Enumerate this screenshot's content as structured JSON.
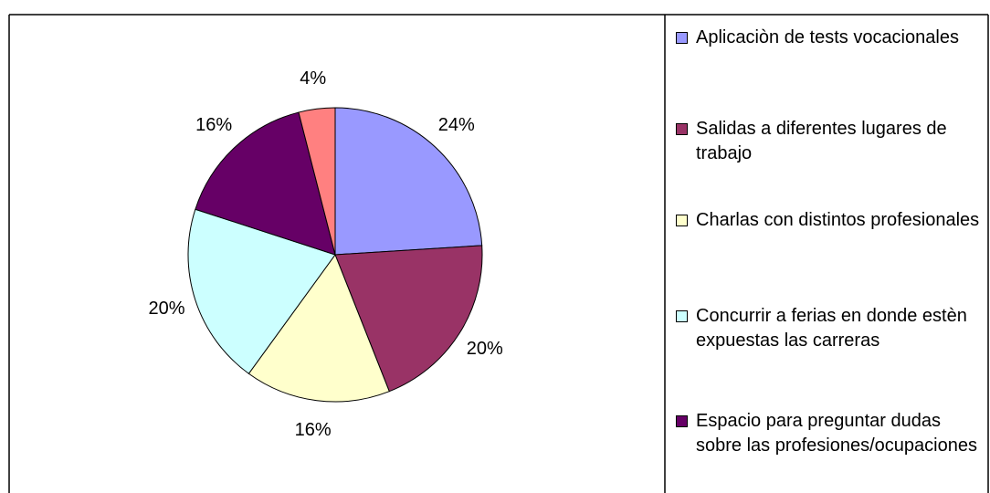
{
  "chart_data": {
    "type": "pie",
    "categories": [
      "Aplicaciòn de tests vocacionales",
      "Salidas a diferentes lugares de trabajo",
      "Charlas con distintos profesionales",
      "Concurrir a ferias en donde estèn expuestas las carreras",
      "Espacio para preguntar dudas sobre las profesiones/ocupaciones",
      null
    ],
    "values": [
      24,
      20,
      16,
      20,
      16,
      4
    ],
    "value_labels": [
      "24%",
      "20%",
      "16%",
      "20%",
      "16%",
      "4%"
    ],
    "colors": [
      "#9999ff",
      "#993366",
      "#ffffcc",
      "#ccffff",
      "#660066",
      "#ff8080"
    ],
    "legend": "right"
  }
}
